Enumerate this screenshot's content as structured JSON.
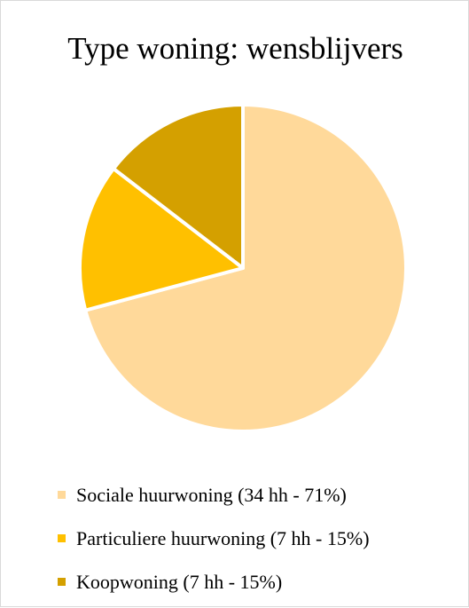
{
  "chart_data": {
    "type": "pie",
    "title": "Type woning: wensblijvers",
    "slices": [
      {
        "label": "Sociale huurwoning (34 hh - 71%)",
        "value": 34,
        "percent": 71,
        "color": "#FFD99A"
      },
      {
        "label": "Particuliere huurwoning (7 hh - 15%)",
        "value": 7,
        "percent": 15,
        "color": "#FFC000"
      },
      {
        "label": "Koopwoning  (7 hh - 15%)",
        "value": 7,
        "percent": 15,
        "color": "#D4A000"
      }
    ],
    "start_angle": "12 o'clock",
    "direction": "clockwise",
    "legend_position": "bottom"
  }
}
